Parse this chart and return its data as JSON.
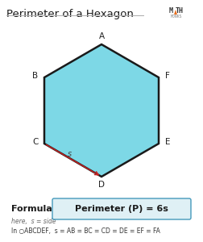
{
  "title": "Perimeter of a Hexagon",
  "bg_color": "#ffffff",
  "hex_fill": "#7dd8e6",
  "hex_edge": "#1a1a1a",
  "hex_lw": 1.8,
  "vertex_labels": [
    "A",
    "B",
    "C",
    "D",
    "E",
    "F"
  ],
  "arrow_color": "#cc2222",
  "formula_label": "Formula:",
  "formula_box_text": "Perimeter (P) = 6s",
  "formula_box_color": "#dff0f5",
  "formula_box_edge": "#4499bb",
  "note_line1": "here,  s = side",
  "note_line2": "In ○ABCDEF,  s = AB = BC = CD = DE = EF = FA"
}
